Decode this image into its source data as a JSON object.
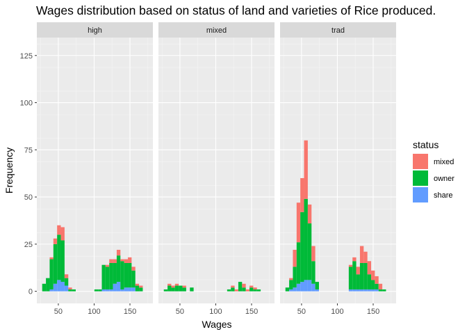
{
  "chart_data": {
    "type": "bar",
    "subtype": "faceted stacked histogram",
    "title": "Wages distribution based on status of land and varieties of Rice produced.",
    "xlabel": "Wages",
    "ylabel": "Frequency",
    "xlim": [
      20,
      182
    ],
    "ylim": [
      -6.4,
      134.5
    ],
    "x_ticks": [
      50,
      100,
      150
    ],
    "y_ticks": [
      0,
      25,
      50,
      75,
      100,
      125
    ],
    "bin_width": 5.2,
    "bin_start": 27.5,
    "bins": 28,
    "grid": true,
    "legend": {
      "title": "status",
      "placement": "right",
      "entries": [
        {
          "name": "mixed",
          "color": "#F8766D"
        },
        {
          "name": "owner",
          "color": "#00BA38"
        },
        {
          "name": "share",
          "color": "#619CFF"
        }
      ]
    },
    "facets": [
      {
        "name": "high",
        "mixed": [
          0,
          0,
          1,
          3,
          5,
          7,
          2,
          1,
          0,
          0,
          0,
          0,
          0,
          0,
          0,
          0,
          0,
          1,
          2,
          2,
          3,
          1,
          2,
          3,
          2,
          1,
          1,
          0
        ],
        "owner": [
          4,
          7,
          16,
          21,
          24,
          22,
          4,
          1,
          1,
          0,
          0,
          0,
          0,
          0,
          1,
          1,
          13,
          12,
          14,
          11,
          14,
          15,
          13,
          13,
          9,
          3,
          2,
          0
        ],
        "share": [
          0,
          0,
          1,
          4,
          6,
          5,
          3,
          0,
          0,
          0,
          0,
          0,
          0,
          0,
          0,
          0,
          1,
          1,
          1,
          4,
          5,
          1,
          2,
          2,
          2,
          0,
          0,
          0
        ]
      },
      {
        "name": "mixed",
        "mixed": [
          0,
          1,
          1,
          1,
          0,
          1,
          0,
          0,
          0,
          0,
          0,
          0,
          0,
          0,
          0,
          0,
          0,
          0,
          1,
          1,
          0,
          2,
          1,
          1,
          1,
          0,
          0,
          0
        ],
        "owner": [
          1,
          3,
          2,
          3,
          3,
          2,
          0,
          2,
          0,
          0,
          0,
          0,
          0,
          0,
          0,
          0,
          0,
          1,
          2,
          0,
          5,
          2,
          0,
          2,
          1,
          1,
          0,
          0
        ],
        "share": [
          0,
          0,
          0,
          0,
          0,
          0,
          0,
          0,
          0,
          0,
          0,
          0,
          0,
          0,
          0,
          0,
          0,
          0,
          0,
          0,
          0,
          0,
          0,
          0,
          0,
          0,
          0,
          0
        ]
      },
      {
        "name": "trad",
        "mixed": [
          0,
          1,
          9,
          21,
          18,
          31,
          10,
          8,
          0,
          0,
          0,
          0,
          0,
          0,
          0,
          0,
          0,
          1,
          2,
          4,
          9,
          6,
          7,
          5,
          4,
          3,
          0,
          0
        ],
        "owner": [
          2,
          5,
          11,
          22,
          37,
          43,
          30,
          12,
          4,
          0,
          0,
          0,
          0,
          0,
          0,
          0,
          0,
          12,
          15,
          8,
          14,
          14,
          8,
          5,
          3,
          1,
          1,
          0
        ],
        "share": [
          0,
          1,
          2,
          4,
          5,
          6,
          6,
          4,
          1,
          0,
          0,
          0,
          0,
          0,
          0,
          0,
          0,
          1,
          1,
          1,
          1,
          1,
          1,
          1,
          1,
          0,
          0,
          0
        ]
      }
    ]
  }
}
